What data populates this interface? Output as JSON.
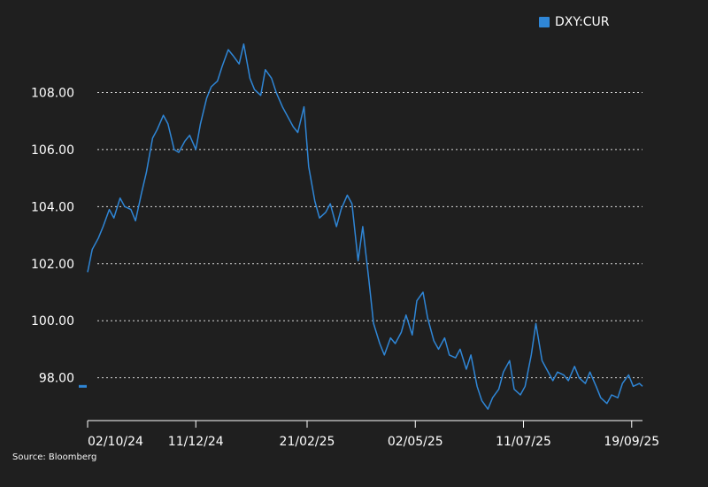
{
  "colors": {
    "background": "#1f1f1f",
    "line": "#2f86d6",
    "grid": "#d9d9d9",
    "text": "#ffffff"
  },
  "legend": {
    "label": "DXY:CUR"
  },
  "source": "Source: Bloomberg",
  "chart_data": {
    "type": "line",
    "title": "",
    "xlabel": "",
    "ylabel": "",
    "ylim": [
      96.5,
      110.0
    ],
    "grid": true,
    "legend_position": "top-right",
    "y_ticks": [
      98,
      100,
      102,
      104,
      106,
      108
    ],
    "y_tick_labels": [
      "98.00",
      "100.00",
      "102.00",
      "104.00",
      "106.00",
      "108.00"
    ],
    "x_tick_labels": [
      "02/10/24",
      "11/12/24",
      "21/02/25",
      "02/05/25",
      "11/07/25",
      "19/09/25"
    ],
    "x_tick_dates": [
      "2024-10-02",
      "2024-12-11",
      "2025-02-21",
      "2025-05-02",
      "2025-07-11",
      "2025-09-19"
    ],
    "x_range_dates": [
      "2024-10-02",
      "2025-09-26"
    ],
    "last_value_marker": 97.7,
    "series": [
      {
        "name": "DXY:CUR",
        "x": [
          "2024-10-02",
          "2024-10-05",
          "2024-10-09",
          "2024-10-12",
          "2024-10-16",
          "2024-10-19",
          "2024-10-23",
          "2024-10-26",
          "2024-10-30",
          "2024-11-02",
          "2024-11-06",
          "2024-11-09",
          "2024-11-13",
          "2024-11-16",
          "2024-11-20",
          "2024-11-23",
          "2024-11-27",
          "2024-11-30",
          "2024-12-04",
          "2024-12-07",
          "2024-12-11",
          "2024-12-14",
          "2024-12-18",
          "2024-12-21",
          "2024-12-25",
          "2024-12-28",
          "2025-01-01",
          "2025-01-04",
          "2025-01-08",
          "2025-01-11",
          "2025-01-15",
          "2025-01-18",
          "2025-01-22",
          "2025-01-25",
          "2025-01-29",
          "2025-02-01",
          "2025-02-05",
          "2025-02-08",
          "2025-02-12",
          "2025-02-15",
          "2025-02-19",
          "2025-02-22",
          "2025-02-26",
          "2025-03-01",
          "2025-03-05",
          "2025-03-08",
          "2025-03-12",
          "2025-03-15",
          "2025-03-19",
          "2025-03-22",
          "2025-03-26",
          "2025-03-29",
          "2025-04-02",
          "2025-04-05",
          "2025-04-09",
          "2025-04-12",
          "2025-04-16",
          "2025-04-19",
          "2025-04-23",
          "2025-04-26",
          "2025-04-30",
          "2025-05-03",
          "2025-05-07",
          "2025-05-10",
          "2025-05-14",
          "2025-05-17",
          "2025-05-21",
          "2025-05-24",
          "2025-05-28",
          "2025-05-31",
          "2025-06-04",
          "2025-06-07",
          "2025-06-11",
          "2025-06-14",
          "2025-06-18",
          "2025-06-21",
          "2025-06-25",
          "2025-06-28",
          "2025-07-02",
          "2025-07-05",
          "2025-07-09",
          "2025-07-12",
          "2025-07-16",
          "2025-07-19",
          "2025-07-23",
          "2025-07-26",
          "2025-07-30",
          "2025-08-02",
          "2025-08-06",
          "2025-08-09",
          "2025-08-13",
          "2025-08-16",
          "2025-08-20",
          "2025-08-23",
          "2025-08-27",
          "2025-08-30",
          "2025-09-03",
          "2025-09-06",
          "2025-09-10",
          "2025-09-13",
          "2025-09-17",
          "2025-09-20",
          "2025-09-24",
          "2025-09-26"
        ],
        "values": [
          101.7,
          102.5,
          102.9,
          103.3,
          103.9,
          103.6,
          104.3,
          104.0,
          103.9,
          103.5,
          104.5,
          105.2,
          106.4,
          106.7,
          107.2,
          106.9,
          106.0,
          105.9,
          106.3,
          106.5,
          106.0,
          106.9,
          107.8,
          108.2,
          108.4,
          108.9,
          109.5,
          109.3,
          109.0,
          109.7,
          108.5,
          108.1,
          107.9,
          108.8,
          108.5,
          108.0,
          107.5,
          107.2,
          106.8,
          106.6,
          107.5,
          105.4,
          104.2,
          103.6,
          103.8,
          104.1,
          103.3,
          103.9,
          104.4,
          104.1,
          102.1,
          103.3,
          101.4,
          99.9,
          99.2,
          98.8,
          99.4,
          99.2,
          99.6,
          100.2,
          99.5,
          100.7,
          101.0,
          100.1,
          99.3,
          99.0,
          99.4,
          98.8,
          98.7,
          99.0,
          98.3,
          98.8,
          97.7,
          97.2,
          96.9,
          97.3,
          97.6,
          98.2,
          98.6,
          97.6,
          97.4,
          97.7,
          98.8,
          99.9,
          98.6,
          98.3,
          97.9,
          98.2,
          98.1,
          97.9,
          98.4,
          98.0,
          97.8,
          98.2,
          97.7,
          97.3,
          97.1,
          97.4,
          97.3,
          97.8,
          98.1,
          97.7,
          97.8,
          97.7
        ]
      }
    ]
  }
}
